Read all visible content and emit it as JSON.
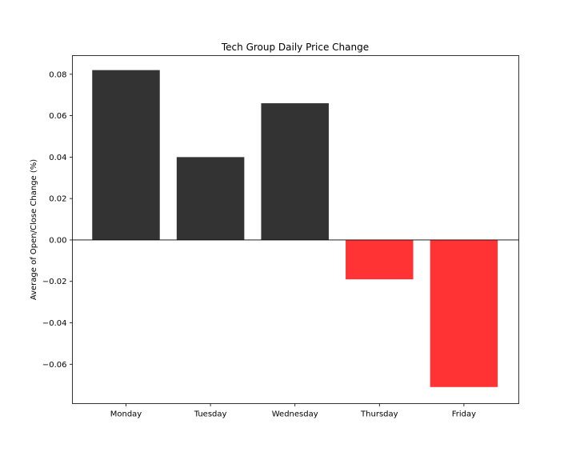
{
  "chart_data": {
    "type": "bar",
    "title": "Tech Group Daily Price Change",
    "xlabel": "",
    "ylabel": "Average of Open/Close Change (%)",
    "categories": [
      "Monday",
      "Tuesday",
      "Wednesday",
      "Thursday",
      "Friday"
    ],
    "values": [
      0.082,
      0.04,
      0.066,
      -0.019,
      -0.071
    ],
    "ylim": [
      -0.079,
      0.089
    ],
    "yticks": [
      0.08,
      0.06,
      0.04,
      0.02,
      0.0,
      -0.02,
      -0.04,
      -0.06
    ],
    "ytick_labels": [
      "0.08",
      "0.06",
      "0.04",
      "0.02",
      "0.00",
      "−0.02",
      "−0.04",
      "−0.06"
    ],
    "colors": {
      "positive": "#333333",
      "negative": "#ff3333",
      "zero_line": "#000000",
      "frame": "#000000"
    },
    "grid": false,
    "legend": "none",
    "zero_line": true
  }
}
